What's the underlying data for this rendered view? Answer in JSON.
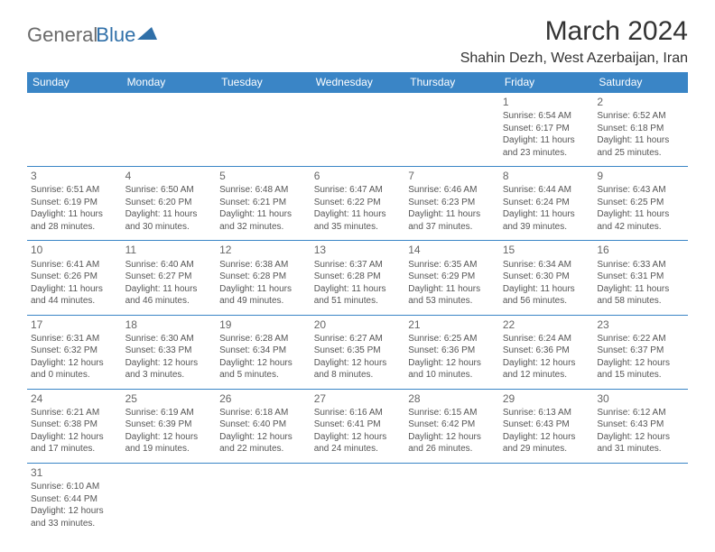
{
  "logo": {
    "text1": "General",
    "text2": "Blue"
  },
  "title": "March 2024",
  "location": "Shahin Dezh, West Azerbaijan, Iran",
  "header_bg": "#3a85c6",
  "header_fg": "#ffffff",
  "cell_border": "#3a85c6",
  "text_color": "#555555",
  "daynum_color": "#666666",
  "days": [
    "Sunday",
    "Monday",
    "Tuesday",
    "Wednesday",
    "Thursday",
    "Friday",
    "Saturday"
  ],
  "weeks": [
    [
      null,
      null,
      null,
      null,
      null,
      {
        "n": "1",
        "sr": "6:54 AM",
        "ss": "6:17 PM",
        "dl": "11 hours and 23 minutes."
      },
      {
        "n": "2",
        "sr": "6:52 AM",
        "ss": "6:18 PM",
        "dl": "11 hours and 25 minutes."
      }
    ],
    [
      {
        "n": "3",
        "sr": "6:51 AM",
        "ss": "6:19 PM",
        "dl": "11 hours and 28 minutes."
      },
      {
        "n": "4",
        "sr": "6:50 AM",
        "ss": "6:20 PM",
        "dl": "11 hours and 30 minutes."
      },
      {
        "n": "5",
        "sr": "6:48 AM",
        "ss": "6:21 PM",
        "dl": "11 hours and 32 minutes."
      },
      {
        "n": "6",
        "sr": "6:47 AM",
        "ss": "6:22 PM",
        "dl": "11 hours and 35 minutes."
      },
      {
        "n": "7",
        "sr": "6:46 AM",
        "ss": "6:23 PM",
        "dl": "11 hours and 37 minutes."
      },
      {
        "n": "8",
        "sr": "6:44 AM",
        "ss": "6:24 PM",
        "dl": "11 hours and 39 minutes."
      },
      {
        "n": "9",
        "sr": "6:43 AM",
        "ss": "6:25 PM",
        "dl": "11 hours and 42 minutes."
      }
    ],
    [
      {
        "n": "10",
        "sr": "6:41 AM",
        "ss": "6:26 PM",
        "dl": "11 hours and 44 minutes."
      },
      {
        "n": "11",
        "sr": "6:40 AM",
        "ss": "6:27 PM",
        "dl": "11 hours and 46 minutes."
      },
      {
        "n": "12",
        "sr": "6:38 AM",
        "ss": "6:28 PM",
        "dl": "11 hours and 49 minutes."
      },
      {
        "n": "13",
        "sr": "6:37 AM",
        "ss": "6:28 PM",
        "dl": "11 hours and 51 minutes."
      },
      {
        "n": "14",
        "sr": "6:35 AM",
        "ss": "6:29 PM",
        "dl": "11 hours and 53 minutes."
      },
      {
        "n": "15",
        "sr": "6:34 AM",
        "ss": "6:30 PM",
        "dl": "11 hours and 56 minutes."
      },
      {
        "n": "16",
        "sr": "6:33 AM",
        "ss": "6:31 PM",
        "dl": "11 hours and 58 minutes."
      }
    ],
    [
      {
        "n": "17",
        "sr": "6:31 AM",
        "ss": "6:32 PM",
        "dl": "12 hours and 0 minutes."
      },
      {
        "n": "18",
        "sr": "6:30 AM",
        "ss": "6:33 PM",
        "dl": "12 hours and 3 minutes."
      },
      {
        "n": "19",
        "sr": "6:28 AM",
        "ss": "6:34 PM",
        "dl": "12 hours and 5 minutes."
      },
      {
        "n": "20",
        "sr": "6:27 AM",
        "ss": "6:35 PM",
        "dl": "12 hours and 8 minutes."
      },
      {
        "n": "21",
        "sr": "6:25 AM",
        "ss": "6:36 PM",
        "dl": "12 hours and 10 minutes."
      },
      {
        "n": "22",
        "sr": "6:24 AM",
        "ss": "6:36 PM",
        "dl": "12 hours and 12 minutes."
      },
      {
        "n": "23",
        "sr": "6:22 AM",
        "ss": "6:37 PM",
        "dl": "12 hours and 15 minutes."
      }
    ],
    [
      {
        "n": "24",
        "sr": "6:21 AM",
        "ss": "6:38 PM",
        "dl": "12 hours and 17 minutes."
      },
      {
        "n": "25",
        "sr": "6:19 AM",
        "ss": "6:39 PM",
        "dl": "12 hours and 19 minutes."
      },
      {
        "n": "26",
        "sr": "6:18 AM",
        "ss": "6:40 PM",
        "dl": "12 hours and 22 minutes."
      },
      {
        "n": "27",
        "sr": "6:16 AM",
        "ss": "6:41 PM",
        "dl": "12 hours and 24 minutes."
      },
      {
        "n": "28",
        "sr": "6:15 AM",
        "ss": "6:42 PM",
        "dl": "12 hours and 26 minutes."
      },
      {
        "n": "29",
        "sr": "6:13 AM",
        "ss": "6:43 PM",
        "dl": "12 hours and 29 minutes."
      },
      {
        "n": "30",
        "sr": "6:12 AM",
        "ss": "6:43 PM",
        "dl": "12 hours and 31 minutes."
      }
    ],
    [
      {
        "n": "31",
        "sr": "6:10 AM",
        "ss": "6:44 PM",
        "dl": "12 hours and 33 minutes."
      },
      null,
      null,
      null,
      null,
      null,
      null
    ]
  ],
  "labels": {
    "sunrise": "Sunrise:",
    "sunset": "Sunset:",
    "daylight": "Daylight:"
  }
}
